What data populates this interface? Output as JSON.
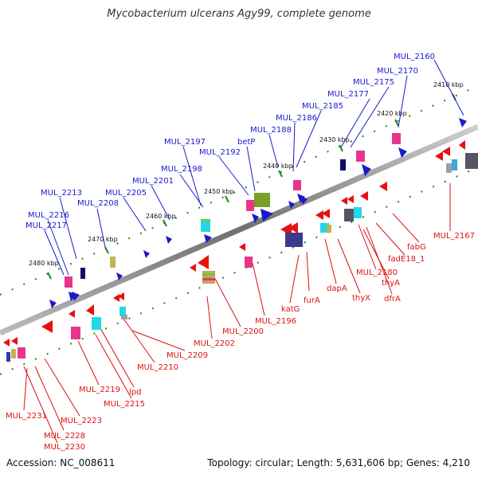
{
  "title": "Mycobacterium ulcerans Agy99, complete genome",
  "footer": {
    "accession": "Accession: NC_008611",
    "summary": "Topology: circular; Length: 5,631,606 bp; Genes: 4,210"
  },
  "colors": {
    "forward_label": "#1a1acc",
    "reverse_label": "#dd1111",
    "backbone": "#8a8a8a",
    "tick": "#1b8a1b"
  },
  "ticks": [
    "2410 kbp",
    "2420 kbp",
    "2430 kbp",
    "2440 kbp",
    "2450 kbp",
    "2460 kbp",
    "2470 kbp",
    "2480 kbp"
  ],
  "forward_labels": [
    "MUL_2160",
    "MUL_2170",
    "MUL_2175",
    "MUL_2177",
    "MUL_2185",
    "MUL_2186",
    "MUL_2188",
    "betP",
    "MUL_2192",
    "MUL_2197",
    "MUL_2198",
    "MUL_2201",
    "MUL_2205",
    "MUL_2208",
    "MUL_2213",
    "MUL_2216",
    "MUL_2217"
  ],
  "reverse_labels": [
    "MUL_2167",
    "fabG",
    "fadE18_1",
    "MUL_2180",
    "thyA",
    "dfrA",
    "thyX",
    "dapA",
    "furA",
    "katG",
    "MUL_2196",
    "MUL_2200",
    "MUL_2202",
    "MUL_2209",
    "MUL_2210",
    "lpd",
    "MUL_2215",
    "MUL_2219",
    "MUL_2223",
    "MUL_2228",
    "MUL_2230",
    "MUL_2231"
  ]
}
